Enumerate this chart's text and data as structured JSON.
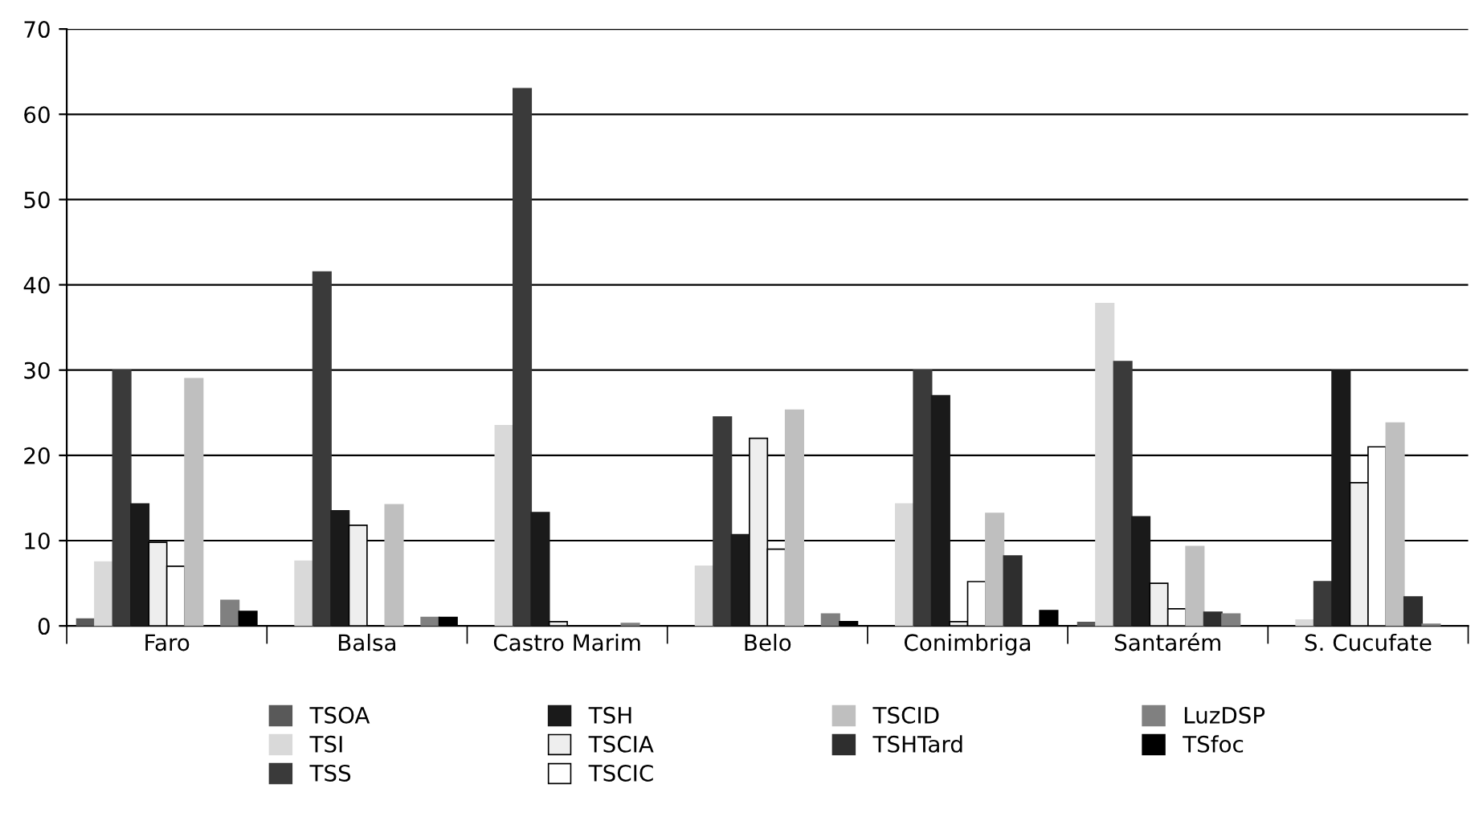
{
  "chart_data": {
    "type": "bar",
    "categories": [
      "Faro",
      "Balsa",
      "Castro Marim",
      "Belo",
      "Conimbriga",
      "Santarém",
      "S. Cucufate"
    ],
    "series": [
      {
        "name": "TSOA",
        "color": "#595959",
        "values": [
          0.8,
          null,
          null,
          null,
          null,
          0.4,
          null
        ]
      },
      {
        "name": "TSI",
        "color": "#d9d9d9",
        "values": [
          7.5,
          7.6,
          23.5,
          7,
          14.3,
          37.8,
          0.7
        ]
      },
      {
        "name": "TSS",
        "color": "#3a3a3a",
        "values": [
          30,
          41.5,
          63,
          24.5,
          30,
          31,
          5.2
        ]
      },
      {
        "name": "TSH",
        "color": "#1a1a1a",
        "values": [
          14.3,
          13.5,
          13.3,
          10.7,
          27,
          12.8,
          30
        ]
      },
      {
        "name": "TSCIA",
        "color": "#eeeeee",
        "values": [
          9.8,
          11.8,
          0.5,
          22,
          0.5,
          5,
          16.8
        ]
      },
      {
        "name": "TSCIC",
        "color": "#ffffff",
        "values": [
          7,
          null,
          null,
          9,
          5.2,
          2,
          21
        ]
      },
      {
        "name": "TSCID",
        "color": "#bfbfbf",
        "values": [
          29,
          14.2,
          null,
          25.3,
          13.2,
          9.3,
          23.8
        ]
      },
      {
        "name": "TSHTard",
        "color": "#2e2e2e",
        "values": [
          null,
          null,
          null,
          null,
          8.2,
          1.6,
          3.4
        ]
      },
      {
        "name": "LuzDSP",
        "color": "#808080",
        "values": [
          3,
          1,
          0.3,
          1.4,
          null,
          1.4,
          0.2
        ]
      },
      {
        "name": "TSfoc",
        "color": "#000000",
        "values": [
          1.7,
          1,
          null,
          0.5,
          1.8,
          null,
          null
        ]
      }
    ],
    "ylim": [
      0,
      70
    ],
    "yticks": [
      0,
      10,
      20,
      30,
      40,
      50,
      60,
      70
    ],
    "grid": "y",
    "legend": "bottom"
  }
}
